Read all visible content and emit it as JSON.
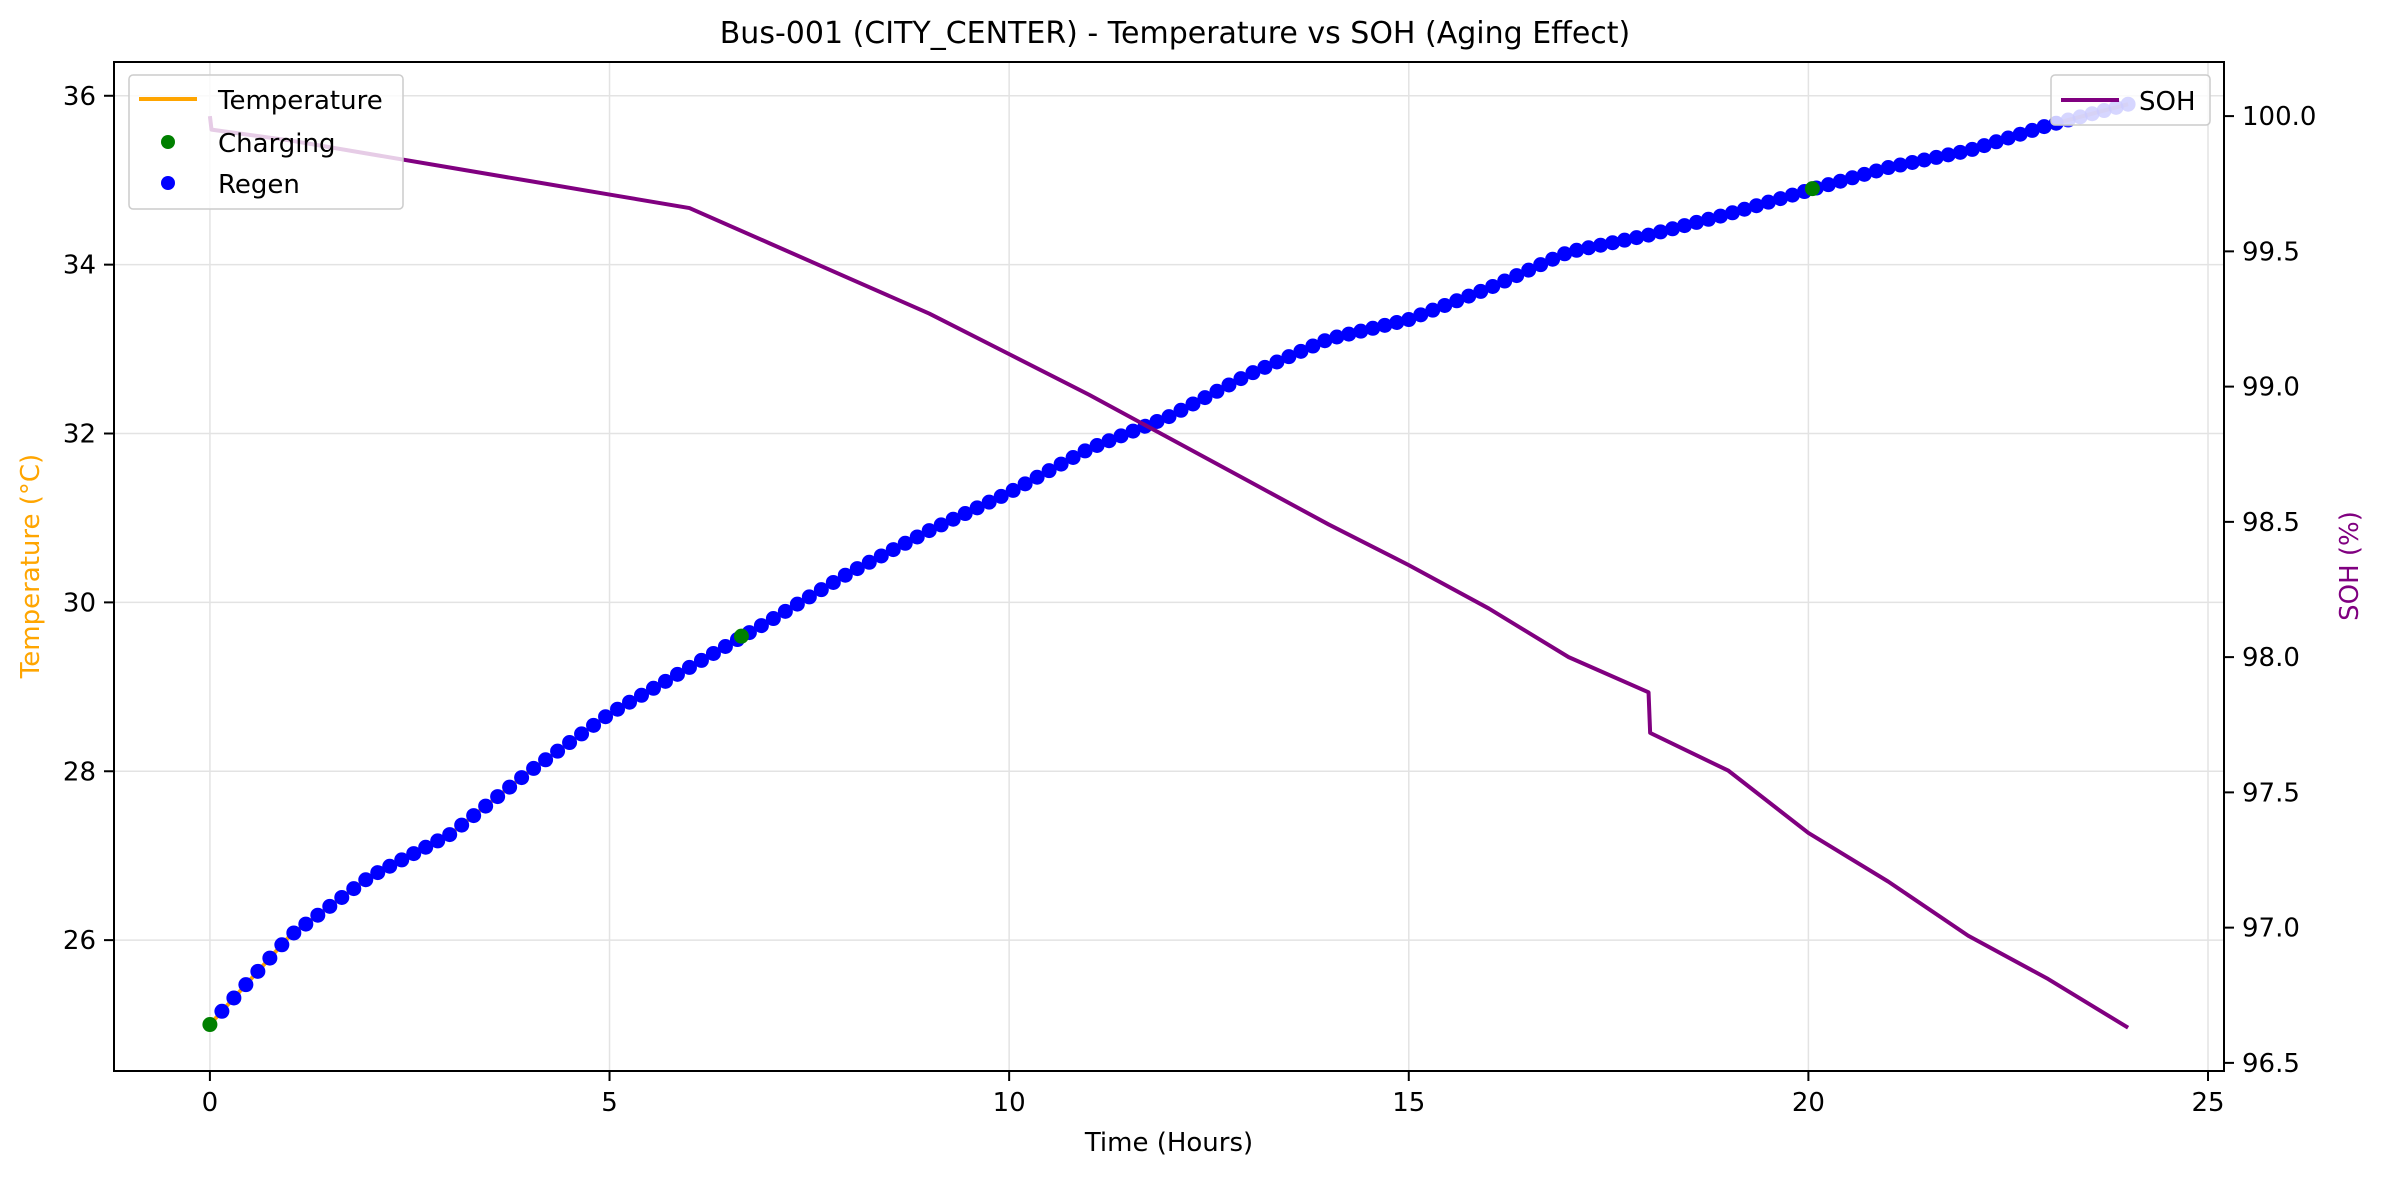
{
  "chart_data": {
    "type": "line",
    "title": "Bus-001 (CITY_CENTER) - Temperature vs SOH (Aging Effect)",
    "xlabel": "Time (Hours)",
    "ylabel": "Temperature (°C)",
    "y2label": "SOH (%)",
    "xlim": [
      -1.2,
      25.2
    ],
    "ylim": [
      24.45,
      36.4
    ],
    "y2lim": [
      96.47,
      100.2
    ],
    "x_ticks": [
      0,
      5,
      10,
      15,
      20,
      25
    ],
    "y_ticks": [
      26,
      28,
      30,
      32,
      34,
      36
    ],
    "y2_ticks": [
      96.5,
      97.0,
      97.5,
      98.0,
      98.5,
      99.0,
      99.5,
      100.0
    ],
    "grid": true,
    "legend_left": {
      "placement": "top-left",
      "entries": [
        "Temperature",
        "Charging",
        "Regen"
      ]
    },
    "legend_right": {
      "placement": "top-right",
      "entries": [
        "SOH"
      ]
    },
    "colors": {
      "temperature": "#ffa500",
      "charging": "#008000",
      "regen": "#0000ff",
      "soh": "#800080",
      "grid": "#e3e3e3",
      "axis": "#000000"
    },
    "series": [
      {
        "name": "Temperature",
        "axis": "left",
        "kind": "line",
        "x": [
          0,
          1,
          2,
          3,
          4,
          5,
          6,
          7,
          8,
          9,
          10,
          11,
          12,
          13,
          14,
          15,
          16,
          17,
          18,
          19,
          20,
          21,
          22,
          23,
          24
        ],
        "y": [
          25.0,
          26.05,
          26.75,
          27.25,
          28.0,
          28.68,
          29.23,
          29.78,
          30.35,
          30.85,
          31.3,
          31.82,
          32.2,
          32.7,
          33.12,
          33.35,
          33.72,
          34.15,
          34.35,
          34.6,
          34.88,
          35.15,
          35.35,
          35.65,
          35.9
        ]
      },
      {
        "name": "SOH",
        "axis": "right",
        "kind": "line",
        "x": [
          0,
          0.02,
          1,
          2,
          3,
          4,
          5,
          6,
          7,
          8,
          9,
          10,
          11,
          12,
          13,
          14,
          15,
          16,
          17,
          18,
          18.02,
          19,
          20,
          21,
          22,
          23,
          24
        ],
        "y": [
          100.0,
          99.95,
          99.91,
          99.86,
          99.81,
          99.76,
          99.71,
          99.66,
          99.53,
          99.4,
          99.27,
          99.12,
          98.97,
          98.81,
          98.65,
          98.49,
          98.34,
          98.18,
          98.0,
          97.87,
          97.72,
          97.58,
          97.35,
          97.17,
          96.97,
          96.81,
          96.63
        ]
      },
      {
        "name": "Charging",
        "axis": "left",
        "kind": "scatter",
        "x": [
          0,
          6.65,
          20.05
        ],
        "y": [
          25.0,
          29.6,
          34.9
        ]
      }
    ]
  }
}
